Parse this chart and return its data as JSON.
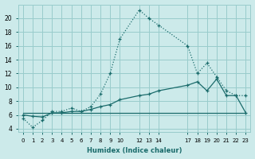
{
  "xlabel": "Humidex (Indice chaleur)",
  "bg_color": "#cceaea",
  "line_color": "#1a6b6b",
  "grid_color": "#99cccc",
  "ylim": [
    3.5,
    22
  ],
  "xlim": [
    -0.5,
    23.5
  ],
  "yticks": [
    4,
    6,
    8,
    10,
    12,
    14,
    16,
    18,
    20
  ],
  "xtick_positions": [
    0,
    1,
    2,
    3,
    4,
    5,
    6,
    7,
    8,
    9,
    10,
    12,
    13,
    14,
    17,
    18,
    19,
    20,
    21,
    22,
    23
  ],
  "xtick_labels": [
    "0",
    "1",
    "2",
    "3",
    "4",
    "5",
    "6",
    "7",
    "8",
    "9",
    "10",
    "12",
    "13",
    "14",
    "17",
    "18",
    "19",
    "20",
    "21",
    "22",
    "23"
  ],
  "line1_x": [
    0,
    1,
    2,
    3,
    4,
    5,
    6,
    7,
    8,
    9,
    10,
    12,
    13,
    14,
    17,
    18,
    19,
    20,
    21,
    22,
    23
  ],
  "line1_y": [
    5.5,
    4.2,
    5.2,
    6.5,
    6.5,
    7.0,
    6.5,
    7.2,
    9.0,
    12.0,
    17.0,
    21.2,
    20.0,
    19.0,
    16.0,
    12.0,
    13.5,
    11.5,
    9.5,
    8.8,
    8.8
  ],
  "line2_x": [
    0,
    1,
    2,
    3,
    4,
    5,
    6,
    7,
    8,
    9,
    10,
    12,
    13,
    14,
    17,
    18,
    19,
    20,
    21,
    22,
    23
  ],
  "line2_y": [
    6.0,
    5.8,
    5.7,
    6.3,
    6.3,
    6.5,
    6.5,
    6.8,
    7.2,
    7.5,
    8.2,
    8.8,
    9.0,
    9.5,
    10.3,
    10.8,
    9.5,
    11.2,
    8.8,
    8.8,
    6.3
  ],
  "line3_x": [
    0,
    23
  ],
  "line3_y": [
    6.3,
    6.3
  ]
}
